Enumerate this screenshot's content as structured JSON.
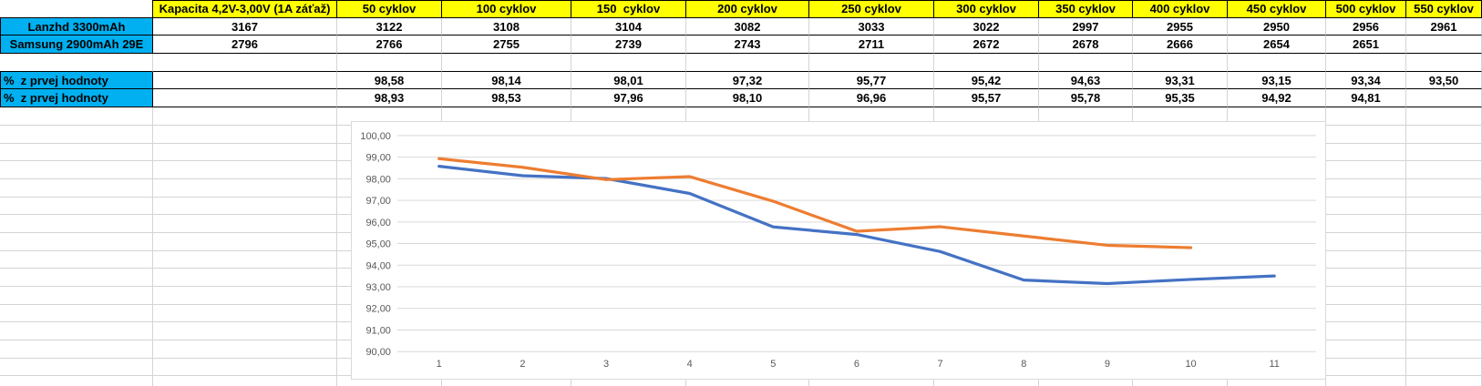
{
  "table": {
    "columns": [
      "",
      "Kapacita 4,2V-3,00V (1A záťaž)",
      "50 cyklov",
      "100 cyklov",
      "150  cyklov",
      "200 cyklov",
      "250 cyklov",
      "300 cyklov",
      "350 cyklov",
      "400 cyklov",
      "450 cyklov",
      "500 cyklov",
      "550 cyklov"
    ],
    "capacity_rows": [
      {
        "label": "Lanzhd 3300mAh",
        "values": [
          "3167",
          "3122",
          "3108",
          "3104",
          "3082",
          "3033",
          "3022",
          "2997",
          "2955",
          "2950",
          "2956",
          "2961"
        ]
      },
      {
        "label": "Samsung 2900mAh 29E",
        "values": [
          "2796",
          "2766",
          "2755",
          "2739",
          "2743",
          "2711",
          "2672",
          "2678",
          "2666",
          "2654",
          "2651",
          ""
        ]
      }
    ],
    "percent_rows": [
      {
        "label": "%  z prvej hodnoty",
        "values": [
          "",
          "98,58",
          "98,14",
          "98,01",
          "97,32",
          "95,77",
          "95,42",
          "94,63",
          "93,31",
          "93,15",
          "93,34",
          "93,50"
        ]
      },
      {
        "label": "%  z prvej hodnoty",
        "values": [
          "",
          "98,93",
          "98,53",
          "97,96",
          "98,10",
          "96,96",
          "95,57",
          "95,78",
          "95,35",
          "94,92",
          "94,81",
          ""
        ]
      }
    ],
    "colors": {
      "header_bg": "#FFFF00",
      "label_bg": "#00B0F0",
      "block_border": "#000000",
      "gridline": "#d4d4d4"
    }
  },
  "chart_data": {
    "type": "line",
    "x": [
      1,
      2,
      3,
      4,
      5,
      6,
      7,
      8,
      9,
      10,
      11
    ],
    "xtick_labels": [
      "1",
      "2",
      "3",
      "4",
      "5",
      "6",
      "7",
      "8",
      "9",
      "10",
      "11"
    ],
    "ytick_labels": [
      "100,00",
      "99,00",
      "98,00",
      "97,00",
      "96,00",
      "95,00",
      "94,00",
      "93,00",
      "92,00",
      "91,00",
      "90,00"
    ],
    "ylim": [
      90,
      100
    ],
    "ytick_step": 1,
    "grid": true,
    "legend": "none",
    "title": "",
    "xlabel": "",
    "ylabel": "",
    "plot_gridline_color": "#d9d9d9",
    "series": [
      {
        "name": "series-blue",
        "color": "#4472C4",
        "values": [
          98.58,
          98.14,
          98.01,
          97.32,
          95.77,
          95.42,
          94.63,
          93.31,
          93.15,
          93.34,
          93.5
        ]
      },
      {
        "name": "series-orange",
        "color": "#ED7D31",
        "values": [
          98.93,
          98.53,
          97.96,
          98.1,
          96.96,
          95.57,
          95.78,
          95.35,
          94.92,
          94.81
        ]
      }
    ]
  }
}
